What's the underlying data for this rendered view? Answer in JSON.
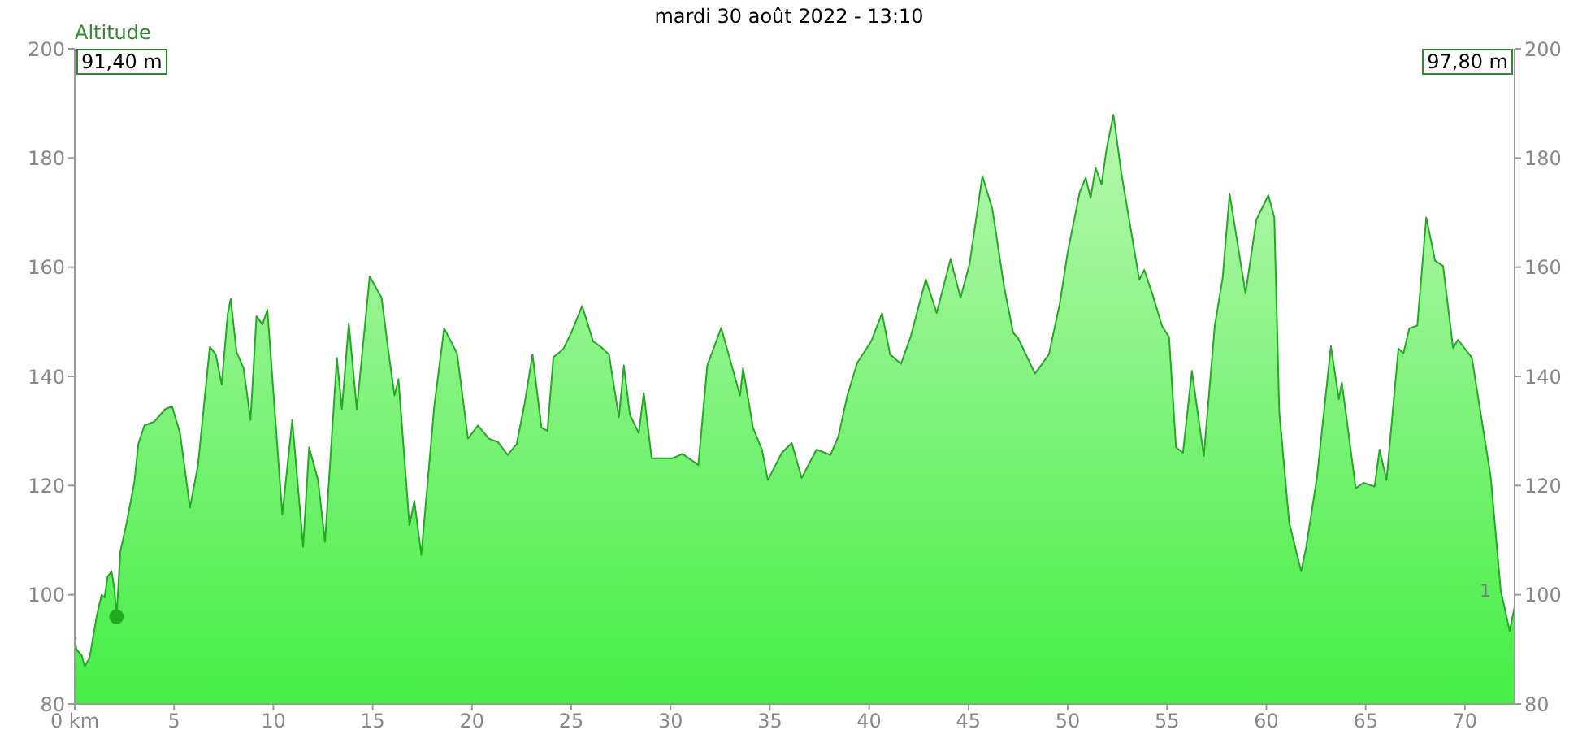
{
  "chart_data": {
    "type": "area",
    "title": "mardi 30 août 2022 - 13:10",
    "ylabel": "Altitude",
    "annotations": [
      "91,40 m",
      "97,80 m",
      {
        "text": "1",
        "x": 71.8,
        "y": 100.8
      }
    ],
    "xlim": [
      0,
      72.5
    ],
    "xticks": [
      {
        "value": 0,
        "label": "0 km"
      },
      5,
      10,
      15,
      20,
      25,
      30,
      35,
      40,
      45,
      50,
      55,
      60,
      65,
      70
    ],
    "ylim": [
      80,
      200
    ],
    "yticks": [
      80,
      100,
      120,
      140,
      160,
      180,
      200
    ],
    "y2lim": [
      80,
      200
    ],
    "y2ticks": [
      80,
      100,
      120,
      140,
      160,
      180,
      200
    ],
    "series": [
      {
        "color": "#22aa22",
        "x": [
          0,
          0.1,
          0.35,
          0.5,
          0.75,
          1.1,
          1.35,
          1.5,
          1.65,
          1.85,
          2.0,
          2.1,
          2.3,
          2.6,
          3.0,
          3.2,
          3.5,
          4.0,
          4.55,
          4.9,
          5.3,
          5.8,
          6.2,
          6.8,
          7.1,
          7.4,
          7.7,
          7.85,
          8.15,
          8.5,
          8.85,
          9.15,
          9.45,
          9.7,
          10.45,
          10.95,
          11.5,
          11.8,
          12.25,
          12.6,
          13.2,
          13.45,
          13.8,
          14.2,
          14.85,
          15.45,
          15.8,
          16.1,
          16.3,
          16.85,
          17.1,
          17.45,
          18.1,
          18.6,
          19.25,
          19.8,
          20.3,
          20.85,
          21.3,
          21.8,
          22.25,
          22.65,
          23.05,
          23.5,
          23.8,
          24.1,
          24.6,
          25.0,
          25.55,
          26.1,
          26.5,
          26.9,
          27.4,
          27.65,
          27.95,
          28.4,
          28.65,
          29.05,
          30.1,
          30.6,
          31.4,
          31.85,
          32.55,
          33.5,
          33.65,
          34.15,
          34.6,
          34.9,
          35.6,
          36.1,
          36.6,
          37.35,
          38.05,
          38.45,
          38.9,
          39.4,
          40.1,
          40.65,
          41.05,
          41.6,
          42.1,
          42.85,
          43.4,
          44.1,
          44.6,
          45.05,
          45.7,
          46.2,
          46.8,
          47.25,
          47.5,
          48.35,
          49.05,
          49.6,
          50.0,
          50.6,
          50.9,
          51.15,
          51.4,
          51.7,
          51.95,
          52.3,
          52.7,
          53.05,
          53.6,
          53.85,
          54.25,
          54.75,
          55.1,
          55.45,
          55.8,
          56.25,
          56.85,
          57.4,
          57.8,
          58.15,
          58.95,
          59.5,
          60.1,
          60.4,
          60.65,
          61.15,
          61.75,
          62.0,
          62.55,
          63.25,
          63.65,
          63.8,
          64.5,
          64.9,
          65.45,
          65.7,
          66.05,
          66.65,
          66.9,
          67.2,
          67.6,
          68.05,
          68.5,
          68.9,
          69.4,
          69.65,
          70.35,
          71.3,
          71.8,
          72.25,
          72.5
        ],
        "values": [
          91.4,
          89.9,
          88.9,
          86.9,
          88.5,
          96,
          100,
          99.5,
          103.3,
          104.3,
          101,
          96,
          108,
          113,
          120.6,
          127.6,
          131,
          131.7,
          134,
          134.5,
          129.6,
          116,
          123.6,
          145.4,
          144,
          138.5,
          151.4,
          154.2,
          144.4,
          141.5,
          132,
          151,
          149.5,
          152.2,
          114.7,
          132,
          108.8,
          127,
          121,
          109.7,
          143.4,
          134,
          149.7,
          134,
          158.3,
          154.4,
          144.4,
          136.5,
          139.5,
          112.7,
          117.2,
          107.3,
          134.5,
          148.8,
          144.2,
          128.6,
          131,
          128.6,
          128,
          125.6,
          127.6,
          135,
          144,
          130.6,
          130,
          143.5,
          145,
          148,
          152.9,
          146.4,
          145.4,
          144,
          132.5,
          142,
          133,
          129.6,
          137,
          125,
          125,
          125.8,
          123.8,
          142,
          148.9,
          136.5,
          141.5,
          130.6,
          126.6,
          121,
          126,
          127.8,
          121.4,
          126.6,
          125.6,
          129,
          136.5,
          142.5,
          146.4,
          151.6,
          144,
          142.3,
          147.4,
          157.8,
          151.6,
          161.5,
          154.4,
          160.5,
          176.7,
          170.7,
          156.3,
          148,
          147,
          140.5,
          144,
          153.4,
          162.8,
          173.7,
          176.4,
          172.7,
          178.2,
          175.2,
          181.6,
          187.9,
          177.2,
          169.6,
          157.7,
          159.5,
          155.2,
          149.2,
          147.2,
          127,
          126,
          141,
          125.4,
          149.2,
          158.1,
          173.4,
          155.2,
          168.7,
          173.2,
          169.1,
          133.5,
          113.2,
          104.3,
          108.6,
          121.5,
          145.5,
          135.8,
          138.9,
          119.5,
          120.5,
          119.8,
          126.6,
          121,
          145.1,
          144.2,
          148.8,
          149.3,
          169.1,
          161.2,
          160.2,
          145.2,
          146.7,
          143.4,
          121.5,
          100.8,
          93.4,
          97.8
        ]
      },
      {
        "type": "scatter",
        "color": "#22aa22",
        "x": [
          2.1
        ],
        "values": [
          96
        ]
      }
    ]
  }
}
